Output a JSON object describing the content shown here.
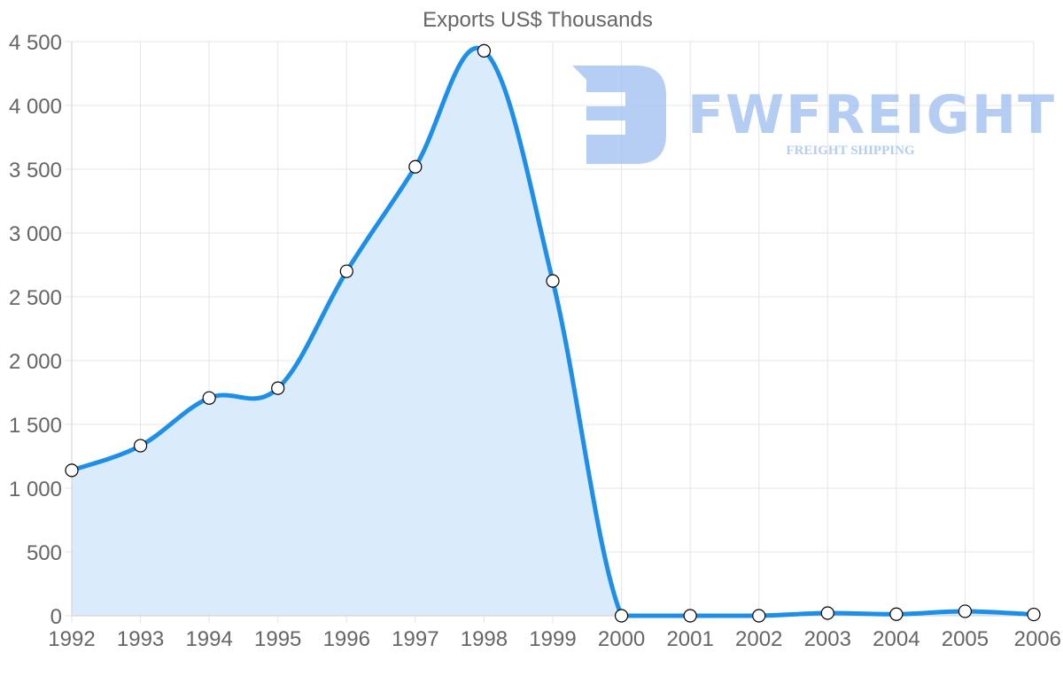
{
  "chart_data": {
    "type": "line",
    "title": "Exports US$ Thousands",
    "xlabel": "",
    "ylabel": "",
    "categories": [
      "1992",
      "1993",
      "1994",
      "1995",
      "1996",
      "1997",
      "1998",
      "1999",
      "2000",
      "2001",
      "2002",
      "2003",
      "2004",
      "2005",
      "2006"
    ],
    "series": [
      {
        "name": "Exports US$ Thousands",
        "values": [
          1140,
          1333,
          1707,
          1784,
          2700,
          3519,
          4428,
          2624,
          0,
          0,
          0,
          21,
          12,
          35,
          10
        ],
        "color": "#1e8fe8",
        "fill": "#d8ebfb",
        "area": true,
        "point_fill": "#ffffff",
        "point_stroke": "#000000"
      }
    ],
    "ylim": [
      0,
      4500
    ],
    "yticks": [
      0,
      500,
      1000,
      1500,
      2000,
      2500,
      3000,
      3500,
      4000,
      4500
    ],
    "ytick_labels": [
      "0",
      "500",
      "1 000",
      "1 500",
      "2 000",
      "2 500",
      "3 000",
      "3 500",
      "4 000",
      "4 500"
    ],
    "grid": true,
    "legend": "none"
  },
  "watermark": {
    "brand": "FWFREIGHT",
    "tagline": "FREIGHT SHIPPING",
    "color": "#a9c5f2"
  }
}
